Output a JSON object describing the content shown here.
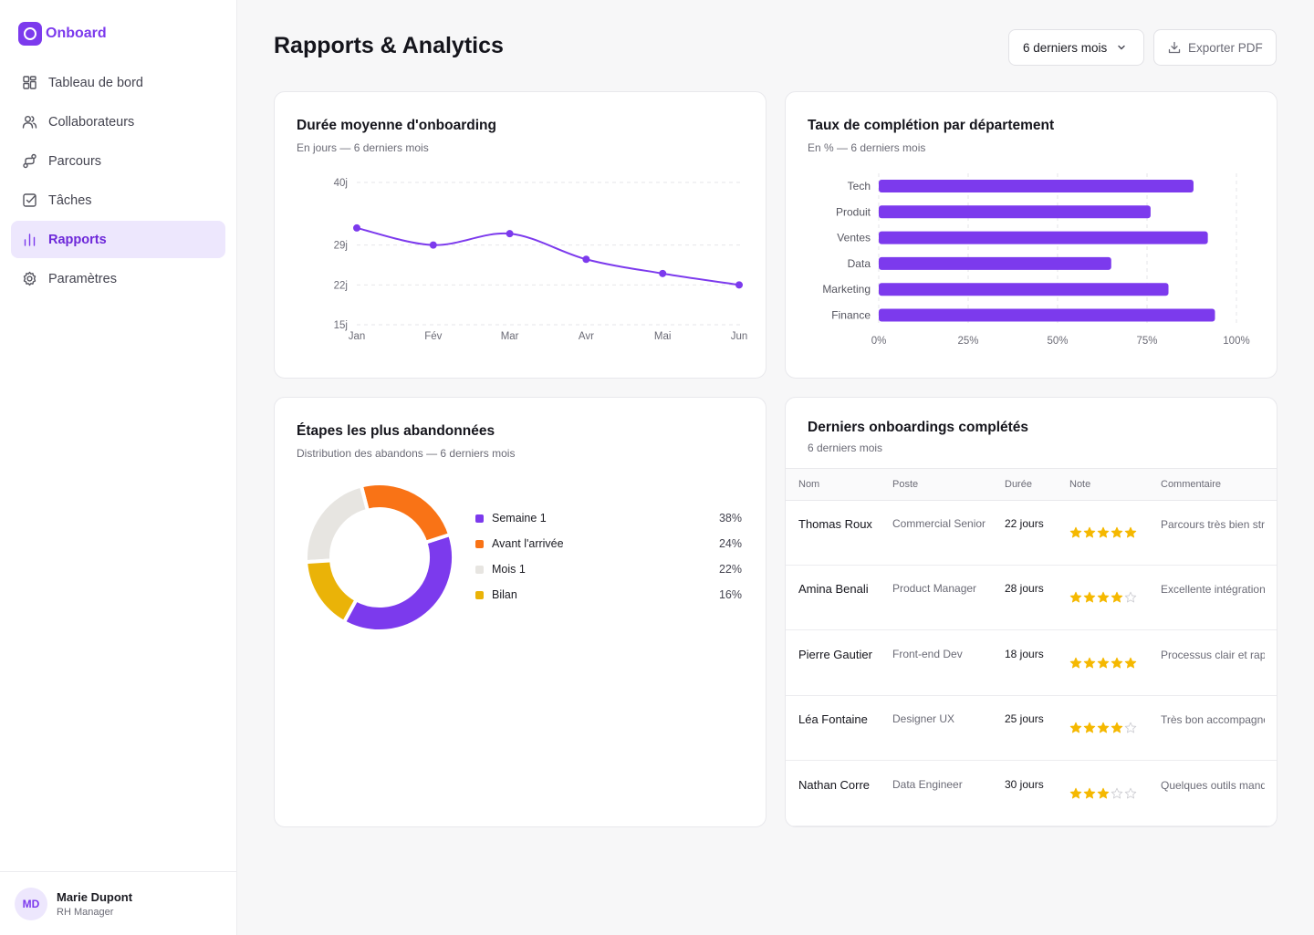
{
  "app": {
    "name": "Onboard"
  },
  "nav": [
    {
      "label": "Tableau de bord",
      "icon": "grid-icon",
      "active": false
    },
    {
      "label": "Collaborateurs",
      "icon": "users-icon",
      "active": false
    },
    {
      "label": "Parcours",
      "icon": "route-icon",
      "active": false
    },
    {
      "label": "Tâches",
      "icon": "checkbox-icon",
      "active": false
    },
    {
      "label": "Rapports",
      "icon": "bar-chart-icon",
      "active": true
    },
    {
      "label": "Paramètres",
      "icon": "gear-icon",
      "active": false
    }
  ],
  "user": {
    "initials": "MD",
    "name": "Marie Dupont",
    "role": "RH Manager"
  },
  "header": {
    "title": "Rapports & Analytics",
    "period_label": "6 derniers mois",
    "export_label": "Exporter PDF"
  },
  "colors": {
    "accent": "#7c3aed",
    "orange": "#f97316",
    "grey": "#e7e5e1",
    "yellow": "#eab308",
    "star": "#f5b800"
  },
  "duration_card": {
    "title": "Durée moyenne d'onboarding",
    "subtitle": "En jours — 6 derniers mois"
  },
  "completion_card": {
    "title": "Taux de complétion par département",
    "subtitle": "En % — 6 derniers mois"
  },
  "dropoff_card": {
    "title": "Étapes les plus abandonnées",
    "subtitle": "Distribution des abandons — 6 derniers mois"
  },
  "recent_card": {
    "title": "Derniers onboardings complétés",
    "subtitle": "6 derniers mois"
  },
  "chart_data": [
    {
      "type": "line",
      "x": [
        "Jan",
        "Fév",
        "Mar",
        "Avr",
        "Mai",
        "Jun"
      ],
      "series": [
        {
          "values": [
            32,
            29,
            31,
            26.5,
            24,
            22
          ]
        }
      ],
      "y_ticks": [
        {
          "value": 40,
          "label": "40j"
        },
        {
          "value": 29,
          "label": "29j"
        },
        {
          "value": 22,
          "label": "22j"
        },
        {
          "value": 15,
          "label": "15j"
        }
      ],
      "ylim": [
        15,
        40
      ],
      "grid": true
    },
    {
      "type": "bar",
      "orientation": "horizontal",
      "categories": [
        "Tech",
        "Produit",
        "Ventes",
        "Data",
        "Marketing",
        "Finance"
      ],
      "values": [
        88,
        76,
        92,
        65,
        81,
        94
      ],
      "x_ticks": [
        "0%",
        "25%",
        "50%",
        "75%",
        "100%"
      ],
      "xlim": [
        0,
        100
      ],
      "grid": true
    },
    {
      "type": "pie",
      "donut": true,
      "labels": [
        "Semaine 1",
        "Avant l'arrivée",
        "Mois 1",
        "Bilan"
      ],
      "values": [
        38,
        24,
        22,
        16
      ],
      "value_labels": [
        "38%",
        "24%",
        "22%",
        "16%"
      ]
    }
  ],
  "recent_table": {
    "columns": [
      "Nom",
      "Poste",
      "Durée",
      "Note",
      "Commentaire"
    ],
    "rows": [
      {
        "name": "Thomas Roux",
        "poste": "Commercial Senior",
        "duree": "22 jours",
        "rating": 5,
        "comment": "Parcours très bien structuré"
      },
      {
        "name": "Amina Benali",
        "poste": "Product Manager",
        "duree": "28 jours",
        "rating": 4,
        "comment": "Excellente intégration"
      },
      {
        "name": "Pierre Gautier",
        "poste": "Front-end Dev",
        "duree": "18 jours",
        "rating": 5,
        "comment": "Processus clair et rapide"
      },
      {
        "name": "Léa Fontaine",
        "poste": "Designer UX",
        "duree": "25 jours",
        "rating": 4,
        "comment": "Très bon accompagnement"
      },
      {
        "name": "Nathan Corre",
        "poste": "Data Engineer",
        "duree": "30 jours",
        "rating": 3,
        "comment": "Quelques outils manquants"
      }
    ]
  }
}
